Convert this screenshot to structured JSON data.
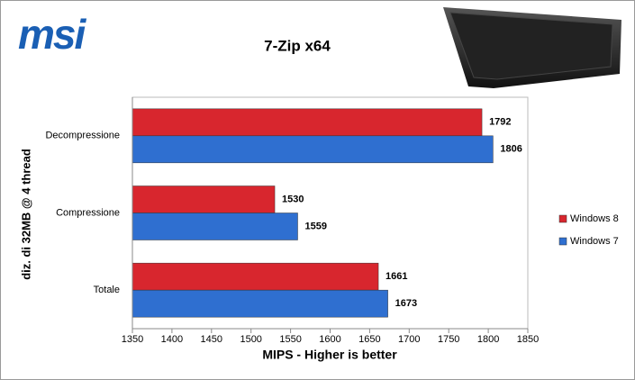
{
  "logo": "msi",
  "chart_data": {
    "type": "barh",
    "title": "7-Zip x64",
    "x_label": "MIPS - Higher is better",
    "y_label": "diz. di 32MB @ 4 thread",
    "categories": [
      "Decompressione",
      "Compressione",
      "Totale"
    ],
    "series": [
      {
        "name": "Windows 8",
        "color": "#d8262e",
        "values": [
          1792,
          1530,
          1661
        ]
      },
      {
        "name": "Windows 7",
        "color": "#2f6fd0",
        "values": [
          1806,
          1559,
          1673
        ]
      }
    ],
    "xlim": [
      1350,
      1850
    ],
    "xticks": [
      1350,
      1400,
      1450,
      1500,
      1550,
      1600,
      1650,
      1700,
      1750,
      1800,
      1850
    ],
    "grid": false,
    "legend": "right"
  }
}
